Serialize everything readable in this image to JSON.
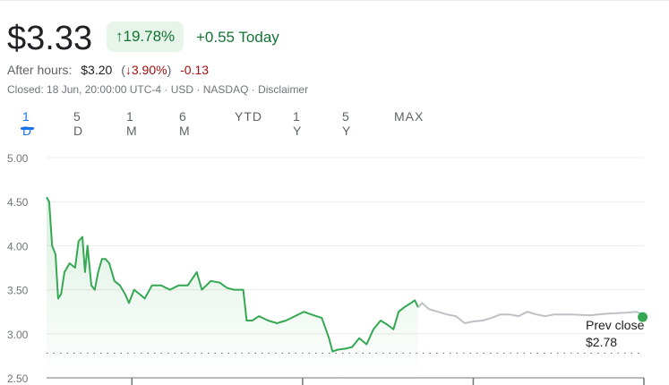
{
  "quote": {
    "price": "$3.33",
    "change_pct": "19.78%",
    "change_abs": "+0.55 Today",
    "up_arrow": "↑"
  },
  "after_hours": {
    "label": "After hours:",
    "price": "$3.20",
    "open_paren": "(",
    "down_arrow": "↓",
    "pct": "3.90%",
    "close_paren": ")",
    "abs": "-0.13"
  },
  "status": "Closed: 18 Jun, 20:00:00 UTC-4 · USD · NASDAQ · Disclaimer",
  "tabs": [
    {
      "label": "1 D",
      "active": true
    },
    {
      "label": "5 D"
    },
    {
      "label": "1 M"
    },
    {
      "label": "6 M"
    },
    {
      "label": "YTD"
    },
    {
      "label": "1 Y"
    },
    {
      "label": "5 Y"
    },
    {
      "label": "MAX"
    }
  ],
  "prev_close": {
    "label": "Prev close",
    "value": "$2.78"
  },
  "colors": {
    "up": "#34a853",
    "after_hours": "#bdc1c6",
    "text_green": "#137333",
    "text_red": "#a50e0e",
    "accent": "#1a73e8"
  },
  "chart_data": {
    "type": "line",
    "y_ticks": [
      "5.00",
      "4.50",
      "4.00",
      "3.50",
      "3.00",
      "2.50"
    ],
    "ylim": [
      2.5,
      5.0
    ],
    "x_unit": "hour",
    "xlim": [
      6,
      20
    ],
    "x_ticks": [
      8,
      12,
      16,
      20
    ],
    "prev_close": 2.78,
    "series": [
      {
        "name": "regular",
        "points": [
          [
            6.0,
            4.55
          ],
          [
            6.06,
            4.5
          ],
          [
            6.13,
            4.0
          ],
          [
            6.21,
            3.9
          ],
          [
            6.27,
            3.4
          ],
          [
            6.34,
            3.45
          ],
          [
            6.42,
            3.7
          ],
          [
            6.54,
            3.8
          ],
          [
            6.67,
            3.75
          ],
          [
            6.75,
            4.05
          ],
          [
            6.84,
            4.1
          ],
          [
            6.9,
            3.7
          ],
          [
            6.96,
            4.0
          ],
          [
            7.05,
            3.55
          ],
          [
            7.13,
            3.5
          ],
          [
            7.21,
            3.7
          ],
          [
            7.3,
            3.85
          ],
          [
            7.38,
            3.85
          ],
          [
            7.47,
            3.8
          ],
          [
            7.59,
            3.6
          ],
          [
            7.72,
            3.55
          ],
          [
            7.84,
            3.45
          ],
          [
            7.93,
            3.35
          ],
          [
            8.05,
            3.5
          ],
          [
            8.18,
            3.45
          ],
          [
            8.3,
            3.4
          ],
          [
            8.47,
            3.55
          ],
          [
            8.68,
            3.55
          ],
          [
            8.89,
            3.5
          ],
          [
            9.1,
            3.55
          ],
          [
            9.31,
            3.55
          ],
          [
            9.52,
            3.7
          ],
          [
            9.64,
            3.5
          ],
          [
            9.85,
            3.6
          ],
          [
            10.06,
            3.58
          ],
          [
            10.23,
            3.52
          ],
          [
            10.4,
            3.5
          ],
          [
            10.61,
            3.5
          ],
          [
            10.69,
            3.15
          ],
          [
            10.82,
            3.15
          ],
          [
            10.98,
            3.2
          ],
          [
            11.19,
            3.15
          ],
          [
            11.4,
            3.12
          ],
          [
            11.61,
            3.15
          ],
          [
            11.82,
            3.2
          ],
          [
            12.03,
            3.25
          ],
          [
            12.2,
            3.22
          ],
          [
            12.45,
            3.18
          ],
          [
            12.62,
            2.95
          ],
          [
            12.7,
            2.8
          ],
          [
            12.83,
            2.82
          ],
          [
            12.99,
            2.83
          ],
          [
            13.16,
            2.85
          ],
          [
            13.33,
            2.95
          ],
          [
            13.5,
            2.88
          ],
          [
            13.66,
            3.05
          ],
          [
            13.83,
            3.15
          ],
          [
            14.0,
            3.1
          ],
          [
            14.13,
            3.05
          ],
          [
            14.25,
            3.25
          ],
          [
            14.38,
            3.3
          ],
          [
            14.54,
            3.35
          ],
          [
            14.63,
            3.38
          ],
          [
            14.71,
            3.3
          ]
        ]
      },
      {
        "name": "after_hours",
        "points": [
          [
            14.71,
            3.3
          ],
          [
            14.8,
            3.35
          ],
          [
            14.96,
            3.28
          ],
          [
            15.17,
            3.25
          ],
          [
            15.38,
            3.22
          ],
          [
            15.59,
            3.2
          ],
          [
            15.8,
            3.12
          ],
          [
            16.01,
            3.14
          ],
          [
            16.22,
            3.15
          ],
          [
            16.43,
            3.18
          ],
          [
            16.64,
            3.22
          ],
          [
            16.85,
            3.22
          ],
          [
            17.06,
            3.2
          ],
          [
            17.27,
            3.25
          ],
          [
            17.48,
            3.22
          ],
          [
            17.69,
            3.2
          ],
          [
            17.9,
            3.22
          ],
          [
            18.31,
            3.22
          ],
          [
            18.73,
            3.21
          ],
          [
            19.15,
            3.23
          ],
          [
            19.57,
            3.24
          ],
          [
            19.82,
            3.25
          ],
          [
            19.97,
            3.22
          ]
        ]
      }
    ]
  }
}
